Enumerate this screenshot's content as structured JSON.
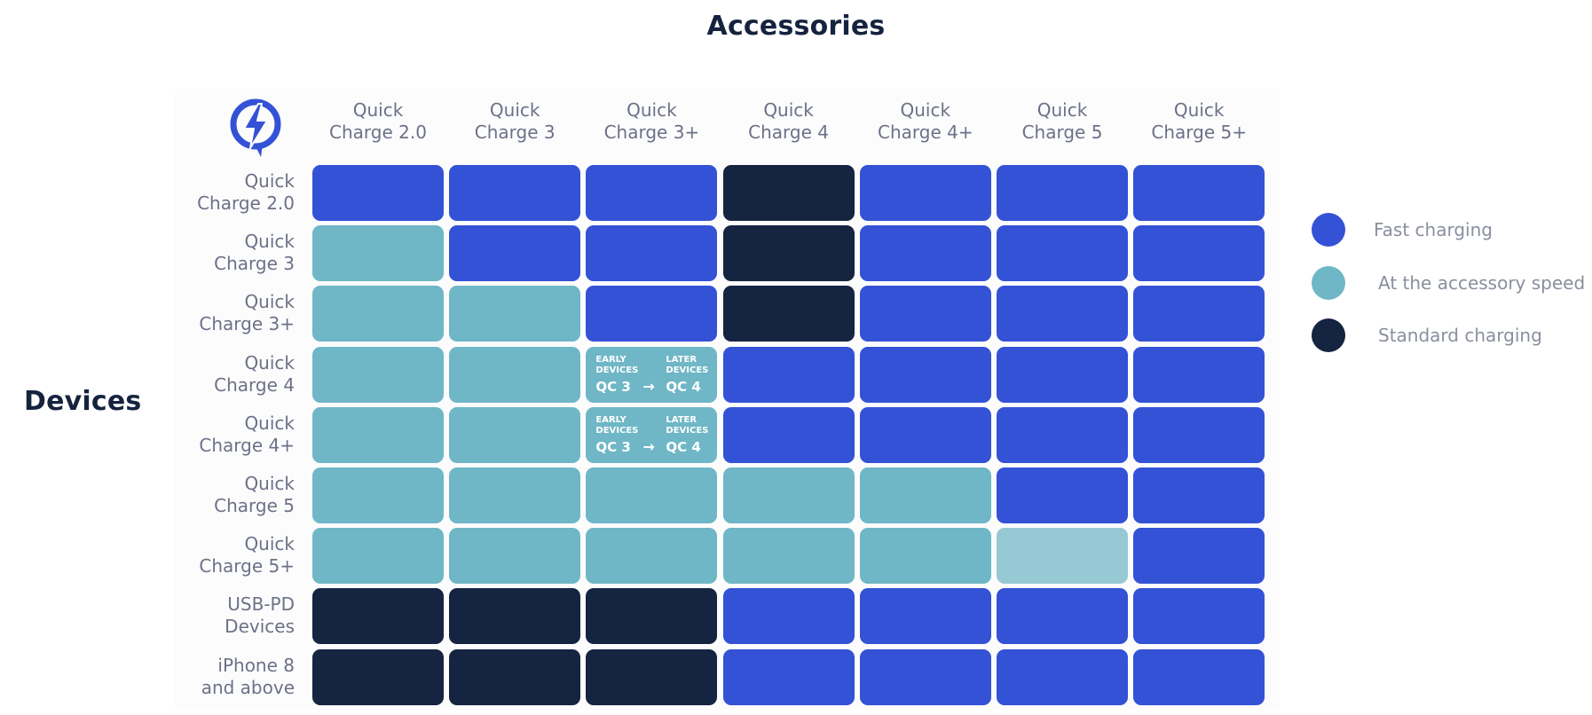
{
  "chart_data": {
    "type": "table",
    "title": "Accessories",
    "xlabel": "Accessories",
    "ylabel": "Devices",
    "columns": [
      "Quick\nCharge 2.0",
      "Quick\nCharge 3",
      "Quick\nCharge 3+",
      "Quick\nCharge 4",
      "Quick\nCharge 4+",
      "Quick\nCharge 5",
      "Quick\nCharge 5+"
    ],
    "rows": [
      "Quick\nCharge 2.0",
      "Quick\nCharge 3",
      "Quick\nCharge 3+",
      "Quick\nCharge 4",
      "Quick\nCharge 4+",
      "Quick\nCharge 5",
      "Quick\nCharge 5+",
      "USB-PD\nDevices",
      "iPhone 8\nand above"
    ],
    "legend": [
      {
        "key": "fast",
        "label": "Fast charging",
        "color": "#3452d5"
      },
      {
        "key": "accessory",
        "label": "At the accessory speed",
        "color": "#6fb7c6"
      },
      {
        "key": "standard",
        "label": "Standard charging",
        "color": "#152440"
      }
    ],
    "cell_colors": {
      "fast": "#3452d5",
      "accessory": "#6fb7c6",
      "accessory_light": "#96c9d4",
      "standard": "#152440"
    },
    "cells": [
      [
        "fast",
        "fast",
        "fast",
        "standard",
        "fast",
        "fast",
        "fast"
      ],
      [
        "accessory",
        "fast",
        "fast",
        "standard",
        "fast",
        "fast",
        "fast"
      ],
      [
        "accessory",
        "accessory",
        "fast",
        "standard",
        "fast",
        "fast",
        "fast"
      ],
      [
        "accessory",
        "accessory",
        "accessory",
        "fast",
        "fast",
        "fast",
        "fast"
      ],
      [
        "accessory",
        "accessory",
        "accessory",
        "fast",
        "fast",
        "fast",
        "fast"
      ],
      [
        "accessory",
        "accessory",
        "accessory",
        "accessory",
        "accessory",
        "fast",
        "fast"
      ],
      [
        "accessory",
        "accessory",
        "accessory",
        "accessory",
        "accessory",
        "accessory_light",
        "fast"
      ],
      [
        "standard",
        "standard",
        "standard",
        "fast",
        "fast",
        "fast",
        "fast"
      ],
      [
        "standard",
        "standard",
        "standard",
        "fast",
        "fast",
        "fast",
        "fast"
      ]
    ],
    "notes": [
      {
        "row": 3,
        "col": 2,
        "left_small": "EARLY\nDEVICES",
        "left_big": "QC 3",
        "arrow": "→",
        "right_small": "LATER\nDEVICES",
        "right_big": "QC 4"
      },
      {
        "row": 4,
        "col": 2,
        "left_small": "EARLY\nDEVICES",
        "left_big": "QC 3",
        "arrow": "→",
        "right_small": "LATER\nDEVICES",
        "right_big": "QC 4"
      }
    ],
    "logo": {
      "icon": "quick-charge-bolt-icon",
      "color": "#3452d5"
    }
  }
}
